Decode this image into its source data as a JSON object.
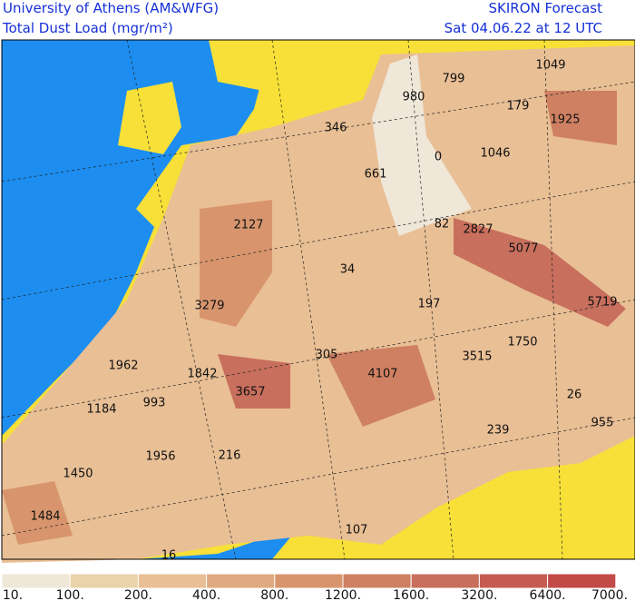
{
  "header": {
    "left": [
      "University of Athens (AM&WFG)",
      "Total Dust Load (mgr/m²)"
    ],
    "right": [
      "SKIRON Forecast",
      "Sat 04.06.22 at 12 UTC"
    ]
  },
  "map_labels": [
    "799",
    "980",
    "1049",
    "179",
    "1925",
    "346",
    "0",
    "1046",
    "661",
    "2127",
    "82",
    "2827",
    "5077",
    "34",
    "3279",
    "197",
    "5719",
    "1750",
    "305",
    "3515",
    "1962",
    "1842",
    "4107",
    "3657",
    "993",
    "1184",
    "26",
    "955",
    "239",
    "1956",
    "216",
    "1450",
    "1484",
    "107",
    "16"
  ],
  "colorbar": {
    "labels": [
      "10.",
      "100.",
      "200.",
      "400.",
      "800.",
      "1200.",
      "1600.",
      "3200.",
      "6400.",
      "7000."
    ],
    "colors": [
      "#efe7d8",
      "#ead3a9",
      "#e9bf95",
      "#e0a97f",
      "#d8956d",
      "#cf8062",
      "#c86f5d",
      "#c45c52",
      "#c24a47"
    ]
  }
}
